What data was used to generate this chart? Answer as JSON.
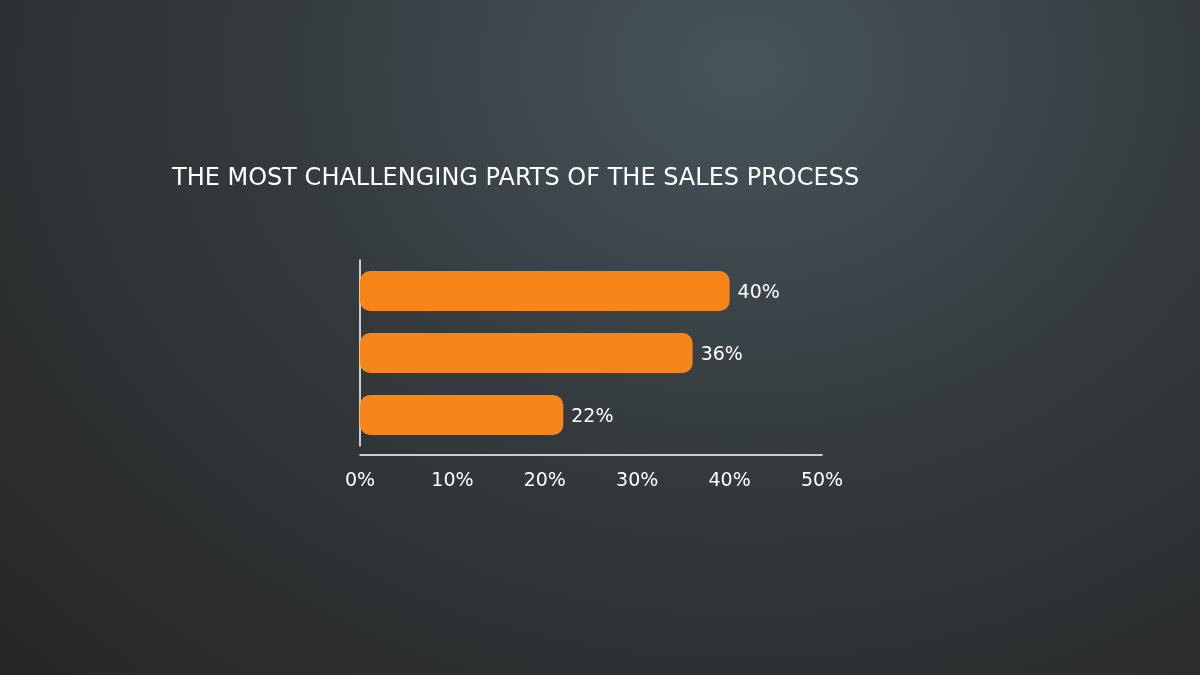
{
  "chart_data": {
    "type": "bar",
    "title": "THE MOST CHALLENGING PARTS OF THE SALES PROCESS",
    "orientation": "horizontal",
    "categories": [
      null,
      null,
      null
    ],
    "values": [
      40,
      36,
      22
    ],
    "color": "#f7861a",
    "value_labels": [
      "40%",
      "36%",
      "22%"
    ],
    "xlim": [
      0,
      50
    ],
    "xticks": [
      {
        "value": 0,
        "label": "0%"
      },
      {
        "value": 10,
        "label": "10%"
      },
      {
        "value": 20,
        "label": "20%"
      },
      {
        "value": 30,
        "label": "30%"
      },
      {
        "value": 40,
        "label": "40%"
      },
      {
        "value": 50,
        "label": "50%"
      }
    ]
  }
}
